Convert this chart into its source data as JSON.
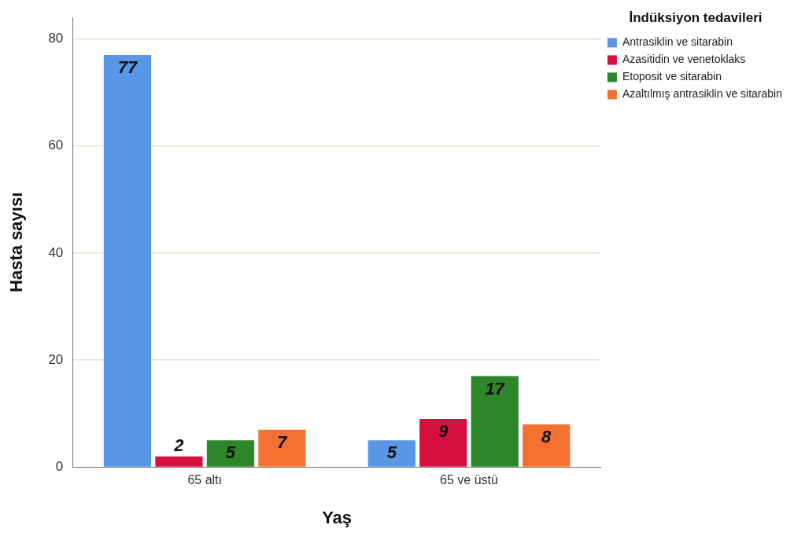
{
  "chart_data": {
    "type": "bar",
    "xlabel": "Yaş",
    "ylabel": "Hasta sayısı",
    "legend_title": "İndüksiyon tedavileri",
    "categories": [
      "65 altı",
      "65 ve üstü"
    ],
    "series": [
      {
        "name": "Antrasiklin ve sitarabin",
        "color": "#5a96e6",
        "values": [
          77,
          5
        ]
      },
      {
        "name": "Azasitidin ve venetoklaks",
        "color": "#d5103f",
        "values": [
          2,
          9
        ]
      },
      {
        "name": "Etoposit ve sitarabin",
        "color": "#2d862a",
        "values": [
          5,
          17
        ]
      },
      {
        "name": "Azaltılmış antrasiklin ve sitarabin",
        "color": "#f57132",
        "values": [
          7,
          8
        ]
      }
    ],
    "ylim": [
      0,
      84
    ],
    "yticks": [
      0,
      20,
      40,
      60,
      80
    ],
    "grid": "y",
    "legend": "top right",
    "data_labels": true
  }
}
